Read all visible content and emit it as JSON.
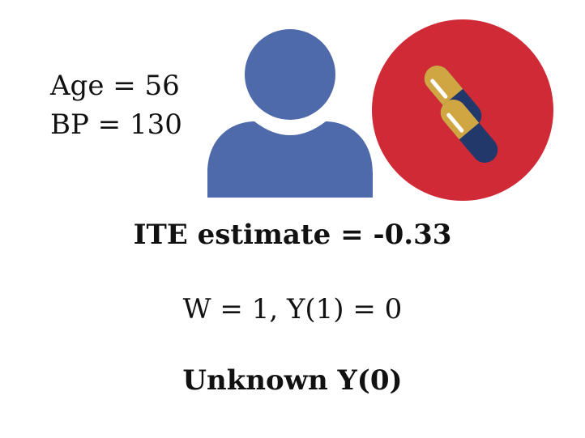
{
  "patient": {
    "age_label": "Age = 56",
    "bp_label": "BP = 130"
  },
  "icons": {
    "person": "person-icon",
    "treatment": "pill-capsules-icon"
  },
  "colors": {
    "person": "#4e6aab",
    "treatment_circle": "#d02a36",
    "capsule_top": "#cfa642",
    "capsule_bottom": "#23386a"
  },
  "results": {
    "ite_estimate": "ITE estimate = -0.33",
    "observed": "W = 1, Y(1) = 0",
    "unknown": "Unknown Y(0)"
  }
}
